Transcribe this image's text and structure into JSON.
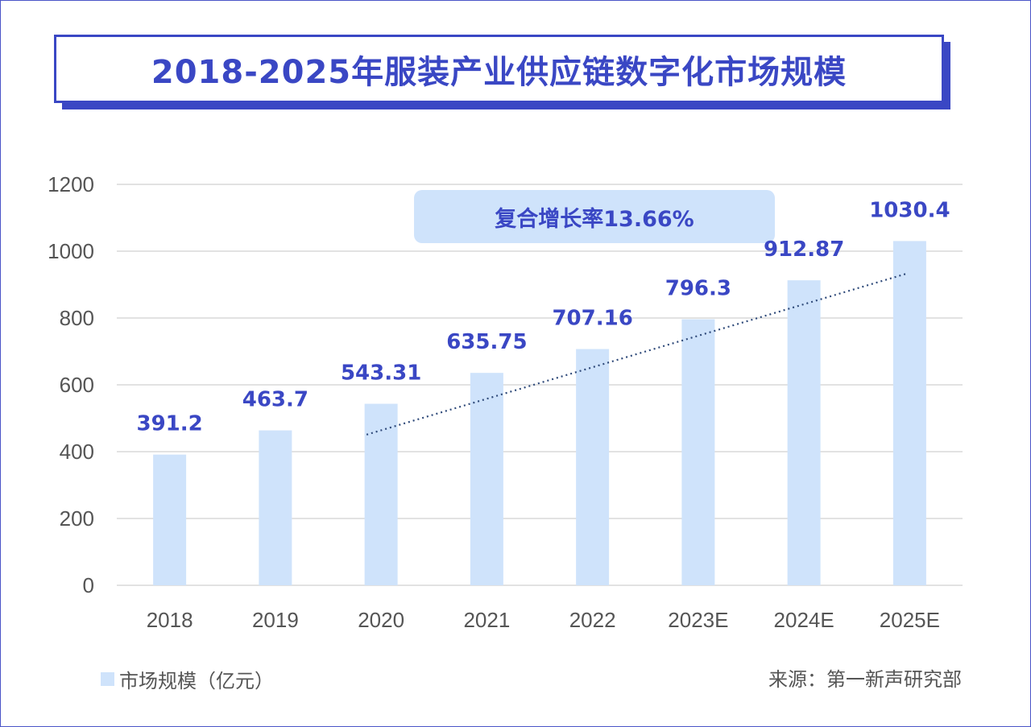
{
  "title": "2018-2025年服装产业供应链数字化市场规模",
  "source": "来源：第一新声研究部",
  "colors": {
    "accent": "#3a47c4",
    "bar": "#cfe3fb",
    "callout_bg": "#cfe3fb",
    "grid": "#d9d9d9",
    "trend": "#2f4a7a"
  },
  "chart_data": {
    "type": "bar",
    "categories": [
      "2018",
      "2019",
      "2020",
      "2021",
      "2022",
      "2023E",
      "2024E",
      "2025E"
    ],
    "series": [
      {
        "name": "市场规模（亿元）",
        "values": [
          391.2,
          463.7,
          543.31,
          635.75,
          707.16,
          796.3,
          912.87,
          1030.4
        ]
      }
    ],
    "data_labels": [
      "391.2",
      "463.7",
      "543.31",
      "635.75",
      "707.16",
      "796.3",
      "912.87",
      "1030.4"
    ],
    "ylim": [
      0,
      1200
    ],
    "yticks": [
      0,
      200,
      400,
      600,
      800,
      1000,
      1200
    ],
    "grid": true,
    "legend": "bottom-left",
    "annotation": "复合增长率13.66%",
    "trendline": {
      "style": "dotted",
      "from": {
        "category": "2020",
        "value": 451
      },
      "to": {
        "category": "2025E",
        "value": 932
      }
    }
  }
}
